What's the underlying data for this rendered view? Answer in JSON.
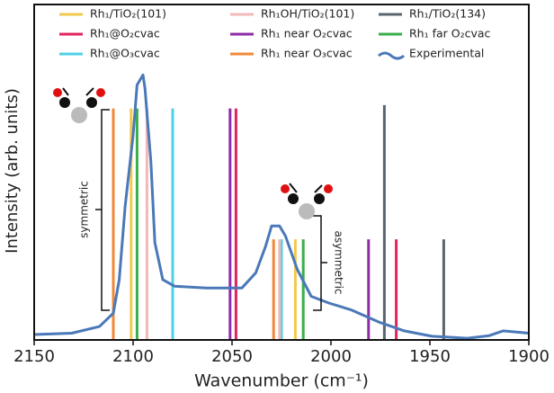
{
  "chart_data": {
    "type": "spectrum",
    "x_label": "Wavenumber (cm⁻¹)",
    "y_label": "Intensity (arb. units)",
    "annotations": [
      "symmetric",
      "asymmetric"
    ],
    "xlim": [
      2150,
      1900
    ],
    "ylim": [
      0,
      1
    ],
    "xticks": [
      2150,
      2100,
      2050,
      2000,
      1950,
      1900
    ],
    "series": [
      {
        "name": "Rh₁/TiO₂(101)",
        "color": "#f2c94c",
        "style": "sticks",
        "x": [
          2101,
          2018
        ],
        "values": [
          0.69,
          0.3
        ]
      },
      {
        "name": "Rh₁@O₂cvac",
        "color": "#e0245e",
        "style": "sticks",
        "x": [
          2048,
          1967
        ],
        "values": [
          0.69,
          0.3
        ]
      },
      {
        "name": "Rh₁@O₃cvac",
        "color": "#4fd0e6",
        "style": "sticks",
        "x": [
          2080,
          2025
        ],
        "values": [
          0.69,
          0.3
        ]
      },
      {
        "name": "Rh₁OH/TiO₂(101)",
        "color": "#f2b8b8",
        "style": "sticks",
        "x": [
          2093,
          2026
        ],
        "values": [
          0.69,
          0.3
        ]
      },
      {
        "name": "Rh₁ near O₂cvac",
        "color": "#8e2ca8",
        "style": "sticks",
        "x": [
          2051,
          1981
        ],
        "values": [
          0.69,
          0.3
        ]
      },
      {
        "name": "Rh₁ near O₃cvac",
        "color": "#f0883a",
        "style": "sticks",
        "x": [
          2110,
          2029
        ],
        "values": [
          0.69,
          0.3
        ]
      },
      {
        "name": "Rh₁/TiO₂(134)",
        "color": "#5a6470",
        "style": "sticks",
        "x": [
          1973,
          1943
        ],
        "values": [
          0.7,
          0.3
        ]
      },
      {
        "name": "Rh₁ far O₂cvac",
        "color": "#3aae4a",
        "style": "sticks",
        "x": [
          2098,
          2014
        ],
        "values": [
          0.69,
          0.3
        ]
      },
      {
        "name": "Experimental",
        "color": "#4a78b8",
        "style": "curve",
        "x": [
          2150,
          2131,
          2117,
          2110,
          2107,
          2104,
          2100,
          2098,
          2095,
          2094,
          2091,
          2089,
          2085,
          2079,
          2063,
          2045,
          2038,
          2033,
          2030,
          2026,
          2023,
          2017,
          2010,
          2001,
          1990,
          1976,
          1963,
          1949,
          1931,
          1920,
          1913,
          1900
        ],
        "values": [
          0.016,
          0.02,
          0.04,
          0.08,
          0.18,
          0.4,
          0.61,
          0.76,
          0.79,
          0.75,
          0.53,
          0.29,
          0.18,
          0.16,
          0.155,
          0.155,
          0.2,
          0.28,
          0.34,
          0.34,
          0.31,
          0.21,
          0.13,
          0.11,
          0.09,
          0.054,
          0.027,
          0.011,
          0.005,
          0.013,
          0.027,
          0.02
        ]
      }
    ]
  }
}
